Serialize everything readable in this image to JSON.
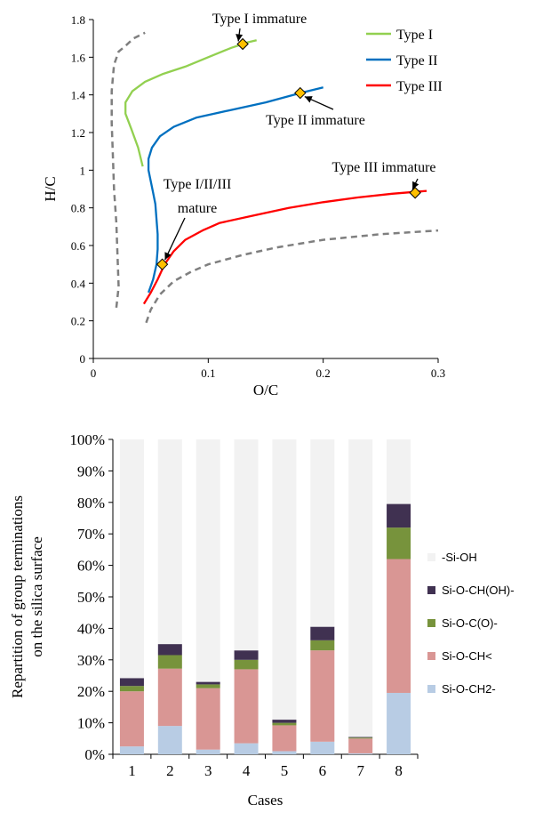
{
  "chart_data": [
    {
      "type": "line",
      "xlabel": "O/C",
      "ylabel": "H/C",
      "xlim": [
        0,
        0.3
      ],
      "ylim": [
        0,
        1.8
      ],
      "xticks": [
        "0",
        "0.1",
        "0.2",
        "0.3"
      ],
      "yticks": [
        "0",
        "0.2",
        "0.4",
        "0.6",
        "0.8",
        "1",
        "1.2",
        "1.4",
        "1.6",
        "1.8"
      ],
      "grid": false,
      "legend": "top-right",
      "series": [
        {
          "name": "Type I",
          "color": "#92D050",
          "x": [
            0.043,
            0.039,
            0.033,
            0.028,
            0.028,
            0.034,
            0.045,
            0.06,
            0.08,
            0.1,
            0.12,
            0.135,
            0.142
          ],
          "y": [
            1.02,
            1.12,
            1.22,
            1.3,
            1.36,
            1.42,
            1.47,
            1.51,
            1.55,
            1.6,
            1.65,
            1.68,
            1.69
          ]
        },
        {
          "name": "Type II",
          "color": "#0070C0",
          "x": [
            0.048,
            0.052,
            0.055,
            0.056,
            0.056,
            0.055,
            0.054,
            0.052,
            0.05,
            0.048,
            0.048,
            0.051,
            0.058,
            0.07,
            0.09,
            0.12,
            0.15,
            0.18,
            0.2
          ],
          "y": [
            0.35,
            0.42,
            0.5,
            0.58,
            0.66,
            0.74,
            0.82,
            0.88,
            0.94,
            1.0,
            1.06,
            1.12,
            1.18,
            1.23,
            1.28,
            1.32,
            1.36,
            1.41,
            1.44
          ]
        },
        {
          "name": "Type III",
          "color": "#FF0000",
          "x": [
            0.044,
            0.05,
            0.056,
            0.062,
            0.07,
            0.08,
            0.095,
            0.11,
            0.14,
            0.17,
            0.2,
            0.23,
            0.26,
            0.28,
            0.29
          ],
          "y": [
            0.29,
            0.35,
            0.42,
            0.5,
            0.57,
            0.63,
            0.68,
            0.72,
            0.76,
            0.8,
            0.83,
            0.855,
            0.875,
            0.885,
            0.89
          ]
        }
      ],
      "envelopes": [
        {
          "style": "dashed",
          "color": "#7F7F7F",
          "x": [
            0.02,
            0.022,
            0.021,
            0.02,
            0.018,
            0.017,
            0.016,
            0.016,
            0.018,
            0.022,
            0.028,
            0.035,
            0.045
          ],
          "y": [
            0.27,
            0.38,
            0.55,
            0.72,
            0.9,
            1.08,
            1.25,
            1.42,
            1.56,
            1.63,
            1.66,
            1.7,
            1.73
          ]
        },
        {
          "style": "dashed",
          "color": "#7F7F7F",
          "x": [
            0.046,
            0.05,
            0.058,
            0.07,
            0.085,
            0.1,
            0.13,
            0.16,
            0.2,
            0.25,
            0.3
          ],
          "y": [
            0.19,
            0.26,
            0.34,
            0.41,
            0.46,
            0.5,
            0.55,
            0.59,
            0.63,
            0.66,
            0.68
          ]
        }
      ],
      "markers": [
        {
          "label": "Type I immature",
          "x": 0.13,
          "y": 1.67
        },
        {
          "label": "Type II immature",
          "x": 0.18,
          "y": 1.41
        },
        {
          "label": "Type III immature",
          "x": 0.28,
          "y": 0.88
        },
        {
          "label_lines": [
            "Type I/II/III",
            "mature"
          ],
          "x": 0.06,
          "y": 0.5
        }
      ],
      "marker_color": "#FFC000"
    },
    {
      "type": "bar",
      "stacked": true,
      "xlabel": "Cases",
      "ylabel": [
        "Repartition of group terminations",
        "on the silica surface"
      ],
      "categories": [
        "1",
        "2",
        "3",
        "4",
        "5",
        "6",
        "7",
        "8"
      ],
      "ylim": [
        0,
        100
      ],
      "yticks": [
        "0%",
        "10%",
        "20%",
        "30%",
        "40%",
        "50%",
        "60%",
        "70%",
        "80%",
        "90%",
        "100%"
      ],
      "grid": false,
      "legend": "right",
      "series": [
        {
          "name": "Si-O-CH2-",
          "color": "#B8CCE4",
          "values": [
            2.5,
            9,
            1.5,
            3.5,
            1,
            4,
            0.3,
            19.5
          ]
        },
        {
          "name": "Si-O-CH<",
          "color": "#D99694",
          "values": [
            17.5,
            18.2,
            19.5,
            23.5,
            8.2,
            29,
            4.7,
            42.5
          ]
        },
        {
          "name": "Si-O-C(O)-",
          "color": "#77933C",
          "values": [
            1.7,
            4.3,
            1.2,
            3,
            0.8,
            3.2,
            0.3,
            10
          ]
        },
        {
          "name": "Si-O-CH(OH)-",
          "color": "#403151",
          "values": [
            2.5,
            3.5,
            0.8,
            3,
            1,
            4.3,
            0.2,
            7.5
          ]
        },
        {
          "name": "-Si-OH",
          "color": "#F2F2F2",
          "values": [
            75.8,
            65,
            77,
            67,
            89,
            59.5,
            94.5,
            20.5
          ]
        }
      ],
      "legend_order": [
        "-Si-OH",
        "Si-O-CH(OH)-",
        "Si-O-C(O)-",
        "Si-O-CH<",
        "Si-O-CH2-"
      ]
    }
  ]
}
